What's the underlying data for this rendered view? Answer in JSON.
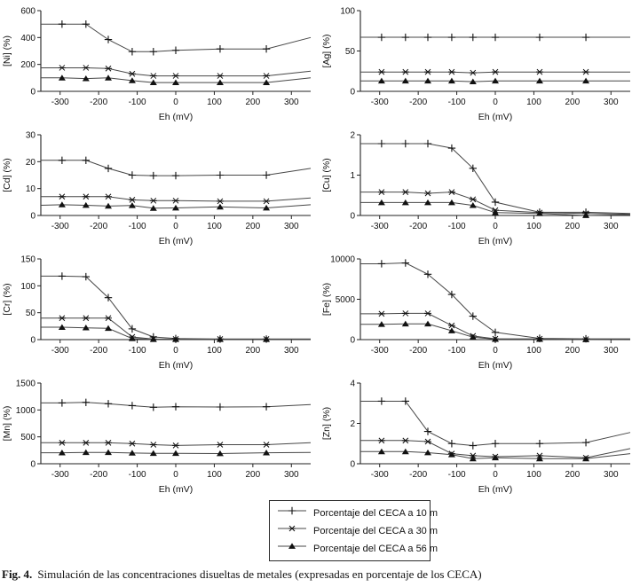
{
  "chart_data": {
    "type": "line",
    "x_label": "Eh (mV)",
    "x": [
      -350,
      -295,
      -233,
      -175,
      -113,
      -58,
      0,
      115,
      235,
      350
    ],
    "x_ticks": [
      -300,
      -200,
      -100,
      0,
      100,
      200,
      300
    ],
    "xlim": [
      -350,
      350
    ],
    "grid": false,
    "legend_position": "bottom-center",
    "markers": [
      "plus",
      "asterisk",
      "triangle"
    ],
    "series_names": [
      "Porcentaje del CECA a 10 m",
      "Porcentaje del CECA a 30 m",
      "Porcentaje del CECA a 56 m"
    ],
    "charts": [
      {
        "ylabel": "[Ni] (%)",
        "ylim": [
          0,
          600
        ],
        "y_ticks": [
          0,
          200,
          400,
          600
        ],
        "series": [
          [
            500,
            500,
            500,
            385,
            295,
            295,
            305,
            315,
            315,
            400
          ],
          [
            175,
            175,
            175,
            170,
            130,
            115,
            115,
            115,
            115,
            150
          ],
          [
            100,
            100,
            95,
            100,
            80,
            65,
            65,
            65,
            65,
            100
          ]
        ]
      },
      {
        "ylabel": "[Ag] (%)",
        "ylim": [
          0,
          100
        ],
        "y_ticks": [
          0,
          50,
          100
        ],
        "series": [
          [
            67,
            67,
            67,
            67,
            67,
            67,
            67,
            67,
            67,
            67
          ],
          [
            24,
            24,
            24,
            24,
            24,
            23,
            24,
            24,
            24,
            24
          ],
          [
            13,
            13,
            13,
            13,
            13,
            12,
            13,
            13,
            13,
            13
          ]
        ]
      },
      {
        "ylabel": "[Cd] (%)",
        "ylim": [
          0,
          30
        ],
        "y_ticks": [
          0,
          10,
          20,
          30
        ],
        "series": [
          [
            20.5,
            20.5,
            20.5,
            17.5,
            15,
            14.8,
            14.8,
            15,
            15,
            17.5
          ],
          [
            7,
            7,
            7,
            7,
            5.8,
            5.5,
            5.5,
            5.3,
            5.3,
            6.5
          ],
          [
            3.8,
            4,
            3.8,
            3.5,
            3.7,
            2.7,
            2.8,
            3.2,
            2.8,
            4
          ]
        ]
      },
      {
        "ylabel": "[Cu] (%)",
        "ylim": [
          0,
          2
        ],
        "y_ticks": [
          0,
          1,
          2
        ],
        "series": [
          [
            1.78,
            1.78,
            1.78,
            1.78,
            1.67,
            1.17,
            0.33,
            0.08,
            0.08,
            0.05
          ],
          [
            0.58,
            0.58,
            0.58,
            0.55,
            0.58,
            0.4,
            0.13,
            0.07,
            0.05,
            0.03
          ],
          [
            0.32,
            0.32,
            0.32,
            0.32,
            0.32,
            0.25,
            0.07,
            0.05,
            0,
            0.02
          ]
        ]
      },
      {
        "ylabel": "[Cr] (%)",
        "ylim": [
          0,
          150
        ],
        "y_ticks": [
          0,
          50,
          100,
          150
        ],
        "series": [
          [
            118,
            118,
            117,
            78,
            20,
            5,
            2,
            1,
            1,
            1
          ],
          [
            40,
            40,
            40,
            40,
            5,
            1,
            1,
            1,
            1,
            1
          ],
          [
            23,
            23,
            22,
            21,
            2,
            0.5,
            0.5,
            0.5,
            0.5,
            0.5
          ]
        ]
      },
      {
        "ylabel": "[Fe] (%)",
        "ylim": [
          0,
          10000
        ],
        "y_ticks": [
          0,
          5000,
          10000
        ],
        "series": [
          [
            9400,
            9400,
            9500,
            8100,
            5600,
            2900,
            900,
            150,
            100,
            100
          ],
          [
            3200,
            3200,
            3250,
            3250,
            1750,
            450,
            100,
            100,
            50,
            50
          ],
          [
            1900,
            1900,
            1950,
            1950,
            1100,
            300,
            50,
            50,
            0,
            50
          ]
        ]
      },
      {
        "ylabel": "[Mn] (%)",
        "ylim": [
          0,
          1500
        ],
        "y_ticks": [
          0,
          500,
          1000,
          1500
        ],
        "series": [
          [
            1130,
            1130,
            1140,
            1115,
            1080,
            1050,
            1060,
            1055,
            1060,
            1100
          ],
          [
            390,
            390,
            390,
            390,
            375,
            355,
            340,
            355,
            355,
            390
          ],
          [
            205,
            205,
            210,
            210,
            200,
            195,
            195,
            190,
            205,
            210
          ]
        ]
      },
      {
        "ylabel": "[Zn] (%)",
        "ylim": [
          0,
          4
        ],
        "y_ticks": [
          0,
          2,
          4
        ],
        "series": [
          [
            3.1,
            3.1,
            3.1,
            1.6,
            1.0,
            0.9,
            1.0,
            1.0,
            1.05,
            1.55
          ],
          [
            1.15,
            1.15,
            1.15,
            1.1,
            0.5,
            0.4,
            0.35,
            0.4,
            0.3,
            0.75
          ],
          [
            0.6,
            0.6,
            0.6,
            0.55,
            0.45,
            0.25,
            0.3,
            0.25,
            0.25,
            0.5
          ]
        ]
      }
    ],
    "colors": {
      "line": "#474747",
      "marker": "#111111",
      "axis": "#222222",
      "text": "#111111"
    }
  },
  "legend": {
    "items": [
      {
        "marker": "plus",
        "label": "Porcentaje del CECA a 10 m"
      },
      {
        "marker": "asterisk",
        "label": "Porcentaje del CECA a 30 m"
      },
      {
        "marker": "triangle",
        "label": "Porcentaje del CECA a 56 m"
      }
    ]
  },
  "caption": {
    "fig_label": "Fig. 4.",
    "text": "Simulación de las concentraciones disueltas de metales (expresadas en porcentaje de los CECA)"
  }
}
